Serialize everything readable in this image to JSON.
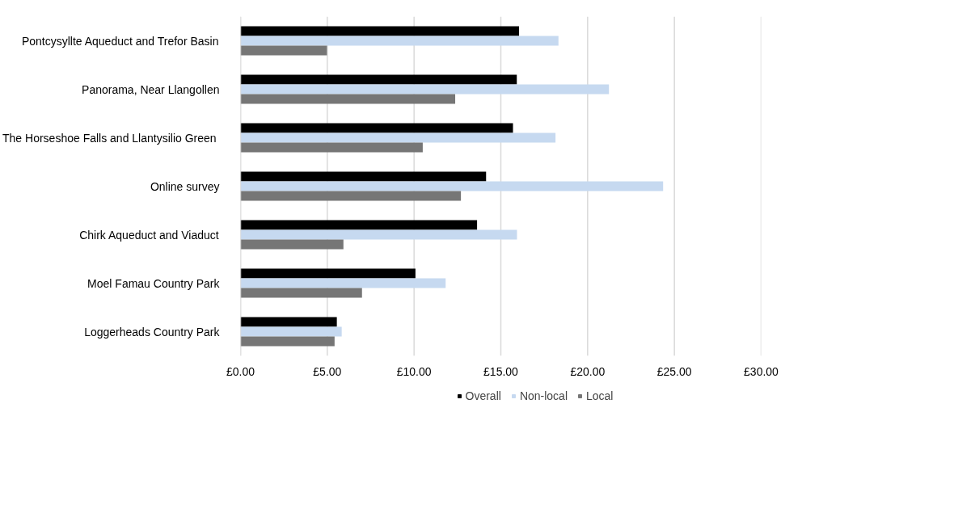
{
  "chart_data": {
    "type": "bar",
    "orientation": "horizontal",
    "categories": [
      "Pontcysyllte Aqueduct and Trefor Basin",
      "Panorama, Near Llangollen",
      "The Horseshoe Falls and Llantysilio Green ",
      "Online survey",
      "Chirk Aqueduct and Viaduct",
      "Moel Famau Country Park",
      "Loggerheads Country Park"
    ],
    "series": [
      {
        "name": "Overall",
        "color": "#000000",
        "values": [
          16.05,
          15.92,
          15.7,
          14.15,
          13.63,
          10.08,
          5.55
        ]
      },
      {
        "name": "Non-local",
        "color": "#c6d9f0",
        "values": [
          18.32,
          21.23,
          18.15,
          24.35,
          15.93,
          11.82,
          5.83
        ]
      },
      {
        "name": "Local",
        "color": "#767676",
        "values": [
          4.98,
          12.37,
          10.5,
          12.7,
          5.93,
          7.0,
          5.42
        ]
      }
    ],
    "xlim": [
      0,
      30
    ],
    "xticks": [
      {
        "value": 0,
        "label": "£0.00"
      },
      {
        "value": 5,
        "label": "£5.00"
      },
      {
        "value": 10,
        "label": "£10.00"
      },
      {
        "value": 15,
        "label": "£15.00"
      },
      {
        "value": 20,
        "label": "£20.00"
      },
      {
        "value": 25,
        "label": "£25.00"
      },
      {
        "value": 30,
        "label": "£30.00"
      }
    ],
    "grid": "x",
    "legend": "bottom"
  }
}
